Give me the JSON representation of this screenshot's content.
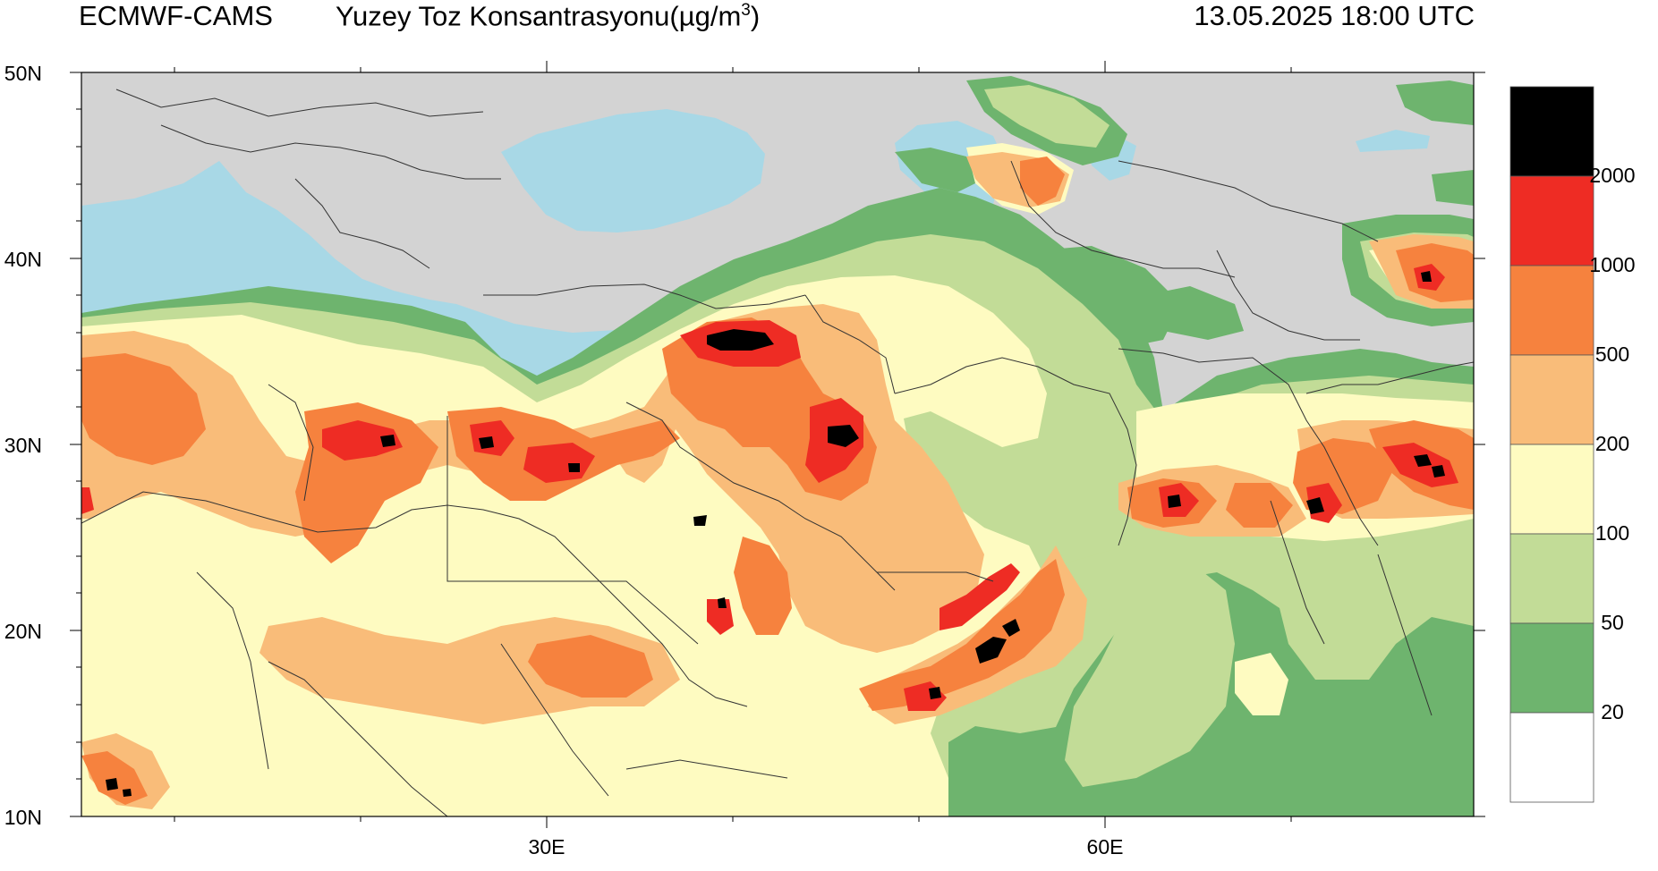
{
  "header": {
    "source": "ECMWF-CAMS",
    "title_prefix": "Yuzey Toz Konsantrasyonu(",
    "title_unit_mu": "µ",
    "title_unit": "g/m",
    "title_unit_sup": "3",
    "title_suffix": ")",
    "datetime": "13.05.2025 18:00 UTC"
  },
  "axes": {
    "lat_labels": [
      "50N",
      "40N",
      "30N",
      "20N",
      "10N"
    ],
    "lon_labels": [
      "30E",
      "60E"
    ]
  },
  "colorbar": {
    "levels": [
      "2000",
      "1000",
      "500",
      "200",
      "100",
      "50",
      "20"
    ],
    "colors": [
      "#000000",
      "#ee2c24",
      "#f6823e",
      "#f9bc79",
      "#fefbc1",
      "#c2dc97",
      "#6eb46e",
      "#ffffff"
    ]
  },
  "map_colors": {
    "land": "#d3d3d3",
    "sea": "#a8d8e6",
    "border": "#333333"
  }
}
